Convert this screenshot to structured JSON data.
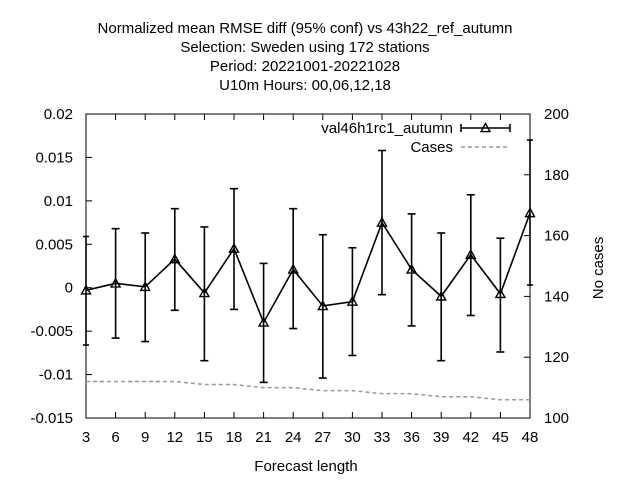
{
  "chart_data": {
    "type": "line",
    "title_lines": [
      "Normalized mean RMSE diff (95% conf) vs 43h22_ref_autumn",
      "Selection: Sweden using   172 stations",
      "Period: 20221001-20221028",
      "U10m   Hours:  00,06,12,18"
    ],
    "xlabel": "Forecast length",
    "ylabel": "",
    "y2label": "No cases",
    "x": [
      3,
      6,
      9,
      12,
      15,
      18,
      21,
      24,
      27,
      30,
      33,
      36,
      39,
      42,
      45,
      48
    ],
    "xlim": [
      3,
      48
    ],
    "ylim": [
      -0.015,
      0.02
    ],
    "y2lim": [
      100,
      200
    ],
    "x_ticks": [
      "3",
      "6",
      "9",
      "12",
      "15",
      "18",
      "21",
      "24",
      "27",
      "30",
      "33",
      "36",
      "39",
      "42",
      "45",
      "48"
    ],
    "y_ticks": [
      {
        "v": 0.02,
        "label": "0.02"
      },
      {
        "v": 0.015,
        "label": "0.015"
      },
      {
        "v": 0.01,
        "label": "0.01"
      },
      {
        "v": 0.005,
        "label": "0.005"
      },
      {
        "v": 0,
        "label": "0"
      },
      {
        "v": -0.005,
        "label": "-0.005"
      },
      {
        "v": -0.01,
        "label": "-0.01"
      },
      {
        "v": -0.015,
        "label": "-0.015"
      }
    ],
    "y2_ticks": [
      {
        "v": 200,
        "label": "200"
      },
      {
        "v": 180,
        "label": "180"
      },
      {
        "v": 160,
        "label": "160"
      },
      {
        "v": 140,
        "label": "140"
      },
      {
        "v": 120,
        "label": "120"
      },
      {
        "v": 100,
        "label": "100"
      }
    ],
    "series": [
      {
        "name": "val46h1rc1_autumn",
        "axis": "left",
        "style": "line-errorbars-triangles",
        "color": "#000000",
        "values": [
          -0.0003,
          0.0005,
          0.0001,
          0.0033,
          -0.0006,
          0.0045,
          -0.004,
          0.0021,
          -0.0021,
          -0.0016,
          0.0075,
          0.0021,
          -0.001,
          0.0038,
          -0.0007,
          0.0086
        ],
        "err_low": [
          -0.0066,
          -0.0058,
          -0.0062,
          -0.0026,
          -0.0084,
          -0.0025,
          -0.0109,
          -0.0047,
          -0.0104,
          -0.0078,
          -0.0008,
          -0.0044,
          -0.0084,
          -0.0032,
          -0.0074,
          0.0003
        ],
        "err_high": [
          0.0059,
          0.0068,
          0.0063,
          0.0091,
          0.007,
          0.0114,
          0.0028,
          0.0091,
          0.0061,
          0.0046,
          0.0158,
          0.0085,
          0.0063,
          0.0107,
          0.0057,
          0.017
        ]
      },
      {
        "name": "Cases",
        "axis": "right",
        "style": "dashed",
        "color": "#999999",
        "values": [
          112,
          112,
          112,
          112,
          111,
          111,
          110,
          110,
          109,
          109,
          108,
          108,
          107,
          107,
          106,
          106
        ]
      }
    ],
    "legend": "top-right",
    "grid": false
  }
}
